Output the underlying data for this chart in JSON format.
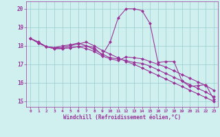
{
  "title": "",
  "xlabel": "Windchill (Refroidissement éolien,°C)",
  "ylabel": "",
  "background_color": "#cff0ee",
  "line_color": "#993399",
  "grid_color": "#99cccc",
  "xlim": [
    -0.5,
    23.5
  ],
  "ylim": [
    14.7,
    20.4
  ],
  "yticks": [
    15,
    16,
    17,
    18,
    19,
    20
  ],
  "xticks": [
    0,
    1,
    2,
    3,
    4,
    5,
    6,
    7,
    8,
    9,
    10,
    11,
    12,
    13,
    14,
    15,
    16,
    17,
    18,
    19,
    20,
    21,
    22,
    23
  ],
  "line1_x": [
    0,
    1,
    2,
    3,
    4,
    5,
    6,
    7,
    8,
    9,
    10,
    11,
    12,
    13,
    14,
    15,
    16,
    17,
    18,
    19,
    20,
    21,
    22,
    23
  ],
  "line1_y": [
    18.4,
    18.2,
    17.95,
    17.9,
    17.9,
    18.0,
    18.1,
    18.2,
    18.0,
    17.75,
    17.55,
    17.35,
    17.15,
    17.0,
    16.8,
    16.6,
    16.4,
    16.2,
    16.0,
    15.8,
    15.6,
    15.4,
    15.2,
    15.0
  ],
  "line2_x": [
    0,
    1,
    2,
    3,
    4,
    5,
    6,
    7,
    8,
    9,
    10,
    11,
    12,
    13,
    14,
    15,
    16,
    17,
    18,
    19,
    20,
    21,
    22,
    23
  ],
  "line2_y": [
    18.4,
    18.2,
    17.95,
    17.9,
    18.0,
    18.05,
    18.15,
    18.0,
    17.9,
    17.5,
    18.2,
    19.5,
    20.0,
    20.0,
    19.9,
    19.2,
    17.1,
    17.15,
    17.15,
    16.1,
    15.8,
    15.85,
    15.9,
    15.1
  ],
  "line3_x": [
    0,
    1,
    2,
    3,
    4,
    5,
    6,
    7,
    8,
    9,
    10,
    11,
    12,
    13,
    14,
    15,
    16,
    17,
    18,
    19,
    20,
    21,
    22,
    23
  ],
  "line3_y": [
    18.4,
    18.15,
    17.95,
    17.85,
    17.85,
    17.9,
    17.95,
    18.0,
    17.8,
    17.55,
    17.35,
    17.3,
    17.2,
    17.1,
    17.05,
    16.9,
    16.7,
    16.5,
    16.3,
    16.1,
    15.9,
    15.7,
    15.5,
    15.25
  ],
  "line4_x": [
    0,
    1,
    2,
    3,
    4,
    5,
    6,
    7,
    8,
    9,
    10,
    11,
    12,
    13,
    14,
    15,
    16,
    17,
    18,
    19,
    20,
    21,
    22,
    23
  ],
  "line4_y": [
    18.4,
    18.15,
    17.95,
    17.85,
    17.85,
    17.9,
    17.95,
    17.85,
    17.7,
    17.45,
    17.3,
    17.2,
    17.4,
    17.35,
    17.3,
    17.15,
    17.0,
    16.85,
    16.65,
    16.45,
    16.25,
    16.05,
    15.85,
    15.6
  ]
}
